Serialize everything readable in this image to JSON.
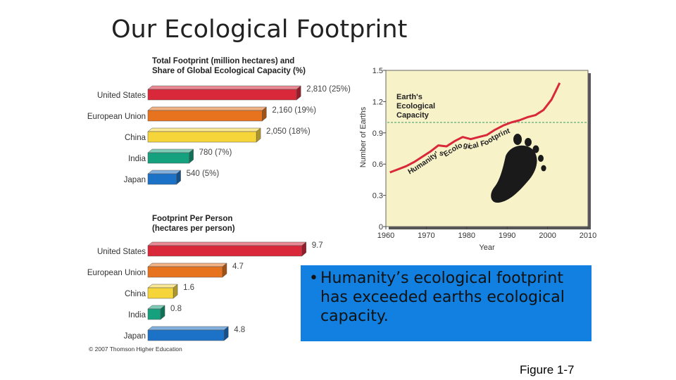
{
  "slide": {
    "title": "Our Ecological Footprint",
    "bullet_symbol": "•",
    "bullet_text": "Humanity’s ecological footprint has exceeded earths ecological capacity.",
    "figure_label": "Figure 1-7",
    "copyright": "© 2007 Thomson Higher Education",
    "colors": {
      "bullet_box": "#1180e0",
      "chart_panel": "#f7f2c8"
    }
  },
  "chart_data": [
    {
      "type": "bar",
      "title": "Total Footprint (million hectares) and Share of Global Ecological Capacity (%)",
      "title_lines": [
        "Total Footprint (million hectares) and",
        "Share of Global Ecological Capacity (%)"
      ],
      "orientation": "horizontal",
      "categories": [
        "United States",
        "European Union",
        "China",
        "India",
        "Japan"
      ],
      "values": [
        2810,
        2160,
        2050,
        780,
        540
      ],
      "shares_percent": [
        25,
        19,
        18,
        7,
        5
      ],
      "labels": [
        "2,810 (25%)",
        "2,160 (19%)",
        "2,050 (18%)",
        "780 (7%)",
        "540 (5%)"
      ],
      "xlim": [
        0,
        3300
      ],
      "colors": [
        "#d8283a",
        "#e8731e",
        "#f6d53a",
        "#15a07e",
        "#1c72c6"
      ]
    },
    {
      "type": "bar",
      "title": "Footprint Per Person (hectares per person)",
      "title_lines": [
        "Footprint Per Person",
        "(hectares per person)"
      ],
      "orientation": "horizontal",
      "categories": [
        "United States",
        "European Union",
        "China",
        "India",
        "Japan"
      ],
      "values": [
        9.7,
        4.7,
        1.6,
        0.8,
        4.8
      ],
      "labels": [
        "9.7",
        "4.7",
        "1.6",
        "0.8",
        "4.8"
      ],
      "xlim": [
        0,
        11
      ],
      "colors": [
        "#d8283a",
        "#e8731e",
        "#f6d53a",
        "#15a07e",
        "#1c72c6"
      ]
    },
    {
      "type": "line",
      "xlabel": "Year",
      "ylabel": "Number of Earths",
      "xlim": [
        1960,
        2010
      ],
      "ylim": [
        0,
        1.5
      ],
      "x_ticks": [
        1960,
        1970,
        1980,
        1990,
        2000,
        2010
      ],
      "y_ticks": [
        0,
        0.3,
        0.6,
        0.9,
        1.2,
        1.5
      ],
      "y_tick_labels": [
        "0",
        "0.3",
        "0.6",
        "0.9",
        "1.2",
        "1.5"
      ],
      "capacity_line": {
        "value": 1.0,
        "label_lines": [
          "Earth's",
          "Ecological",
          "Capacity"
        ]
      },
      "series": [
        {
          "name": "Humanity's Ecological Footprint",
          "x": [
            1961,
            1963,
            1965,
            1967,
            1969,
            1971,
            1973,
            1975,
            1977,
            1979,
            1981,
            1983,
            1985,
            1987,
            1989,
            1991,
            1993,
            1995,
            1997,
            1999,
            2000,
            2001,
            2002,
            2003
          ],
          "values": [
            0.52,
            0.55,
            0.58,
            0.62,
            0.67,
            0.72,
            0.78,
            0.77,
            0.82,
            0.86,
            0.84,
            0.86,
            0.88,
            0.93,
            0.97,
            1.0,
            1.02,
            1.05,
            1.07,
            1.12,
            1.17,
            1.22,
            1.3,
            1.38
          ]
        }
      ],
      "grid": false,
      "legend": "inline label along line"
    }
  ]
}
